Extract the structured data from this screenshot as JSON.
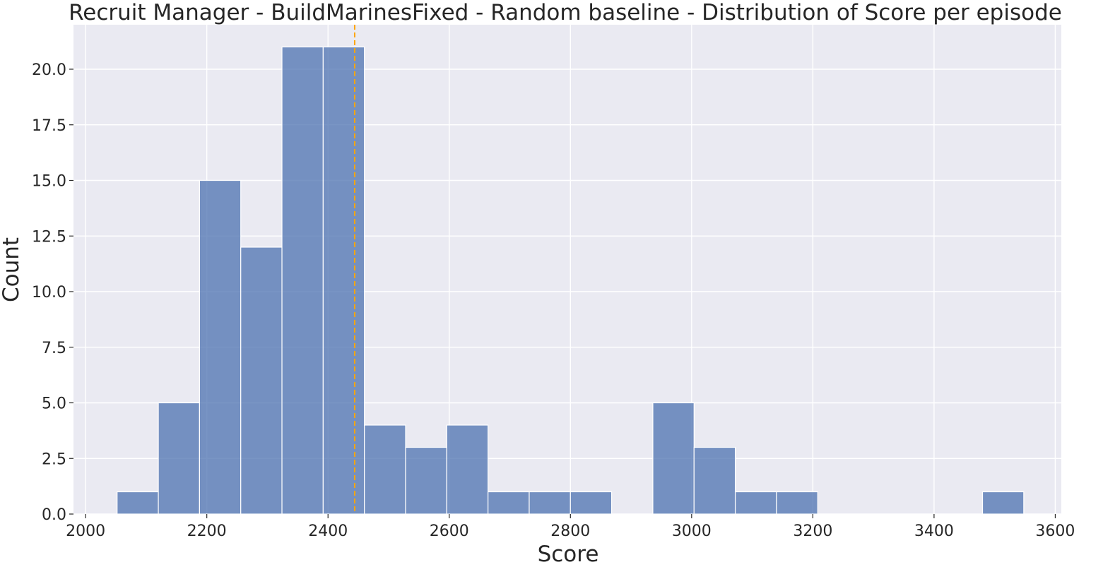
{
  "chart_data": {
    "type": "bar",
    "title": "Recruit Manager - BuildMarinesFixed - Random baseline - Distribution of Score per episode",
    "xlabel": "Score",
    "ylabel": "Count",
    "xlim": [
      1980,
      3610
    ],
    "ylim": [
      0,
      22.0
    ],
    "xticks": [
      2000,
      2200,
      2400,
      2600,
      2800,
      3000,
      3200,
      3400,
      3600
    ],
    "yticks": [
      0.0,
      2.5,
      5.0,
      7.5,
      10.0,
      12.5,
      15.0,
      17.5,
      20.0
    ],
    "ytick_labels": [
      "0.0",
      "2.5",
      "5.0",
      "7.5",
      "10.0",
      "12.5",
      "15.0",
      "17.5",
      "20.0"
    ],
    "grid": true,
    "background_color": "#eaeaf2",
    "bar_color": "#4c72b0",
    "mean_line_color": "#ffa500",
    "mean_line_x": 2444,
    "bins": [
      {
        "start": 2052,
        "end": 2120,
        "count": 1
      },
      {
        "start": 2120,
        "end": 2188,
        "count": 5
      },
      {
        "start": 2188,
        "end": 2256,
        "count": 15
      },
      {
        "start": 2256,
        "end": 2324,
        "count": 12
      },
      {
        "start": 2324,
        "end": 2392,
        "count": 21
      },
      {
        "start": 2392,
        "end": 2460,
        "count": 21
      },
      {
        "start": 2460,
        "end": 2528,
        "count": 4
      },
      {
        "start": 2528,
        "end": 2596,
        "count": 3
      },
      {
        "start": 2596,
        "end": 2664,
        "count": 4
      },
      {
        "start": 2664,
        "end": 2732,
        "count": 1
      },
      {
        "start": 2732,
        "end": 2800,
        "count": 1
      },
      {
        "start": 2800,
        "end": 2868,
        "count": 1
      },
      {
        "start": 2868,
        "end": 2936,
        "count": 0
      },
      {
        "start": 2936,
        "end": 3004,
        "count": 5
      },
      {
        "start": 3004,
        "end": 3072,
        "count": 3
      },
      {
        "start": 3072,
        "end": 3140,
        "count": 1
      },
      {
        "start": 3140,
        "end": 3208,
        "count": 1
      },
      {
        "start": 3208,
        "end": 3276,
        "count": 0
      },
      {
        "start": 3276,
        "end": 3344,
        "count": 0
      },
      {
        "start": 3344,
        "end": 3412,
        "count": 0
      },
      {
        "start": 3412,
        "end": 3480,
        "count": 0
      },
      {
        "start": 3480,
        "end": 3548,
        "count": 1
      }
    ]
  }
}
